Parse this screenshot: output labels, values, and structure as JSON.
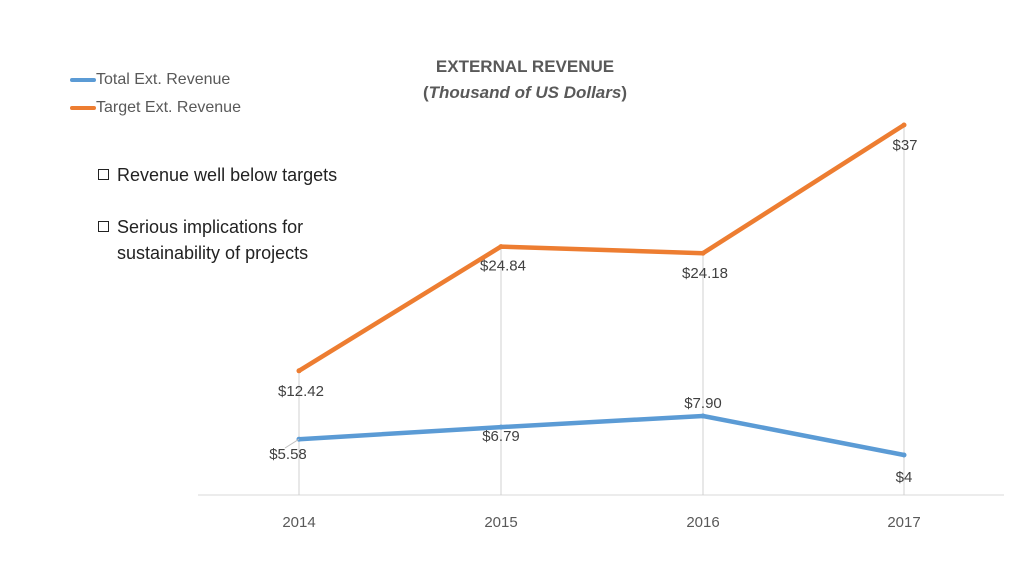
{
  "legend": [
    {
      "label": "Total Ext. Revenue",
      "color": "#5B9BD5"
    },
    {
      "label": "Target Ext. Revenue",
      "color": "#ED7D31"
    }
  ],
  "title": {
    "main": "EXTERNAL REVENUE",
    "sub_open": "(",
    "sub_italic": "Thousand of US Dollars",
    "sub_close": ")"
  },
  "bullets": [
    {
      "text": "Revenue well below targets",
      "icon": "checkbox-icon"
    },
    {
      "text": "Serious implications for sustainability of projects",
      "icon": "checkbox-icon"
    }
  ],
  "chart_data": {
    "type": "line",
    "title": "EXTERNAL REVENUE (Thousand of US Dollars)",
    "categories": [
      "2014",
      "2015",
      "2016",
      "2017"
    ],
    "series": [
      {
        "name": "Total Ext. Revenue",
        "color": "#5B9BD5",
        "values": [
          5.58,
          6.79,
          7.9,
          4
        ],
        "labels": [
          "$5.58",
          "$6.79",
          "$7.90",
          "$4"
        ]
      },
      {
        "name": "Target Ext. Revenue",
        "color": "#ED7D31",
        "values": [
          12.42,
          24.84,
          24.18,
          37
        ],
        "labels": [
          "$12.42",
          "$24.84",
          "$24.18",
          "$37"
        ]
      }
    ],
    "ylim": [
      0,
      37
    ],
    "xlabel": "",
    "ylabel": "",
    "legend_position": "top-left",
    "grid": false
  }
}
